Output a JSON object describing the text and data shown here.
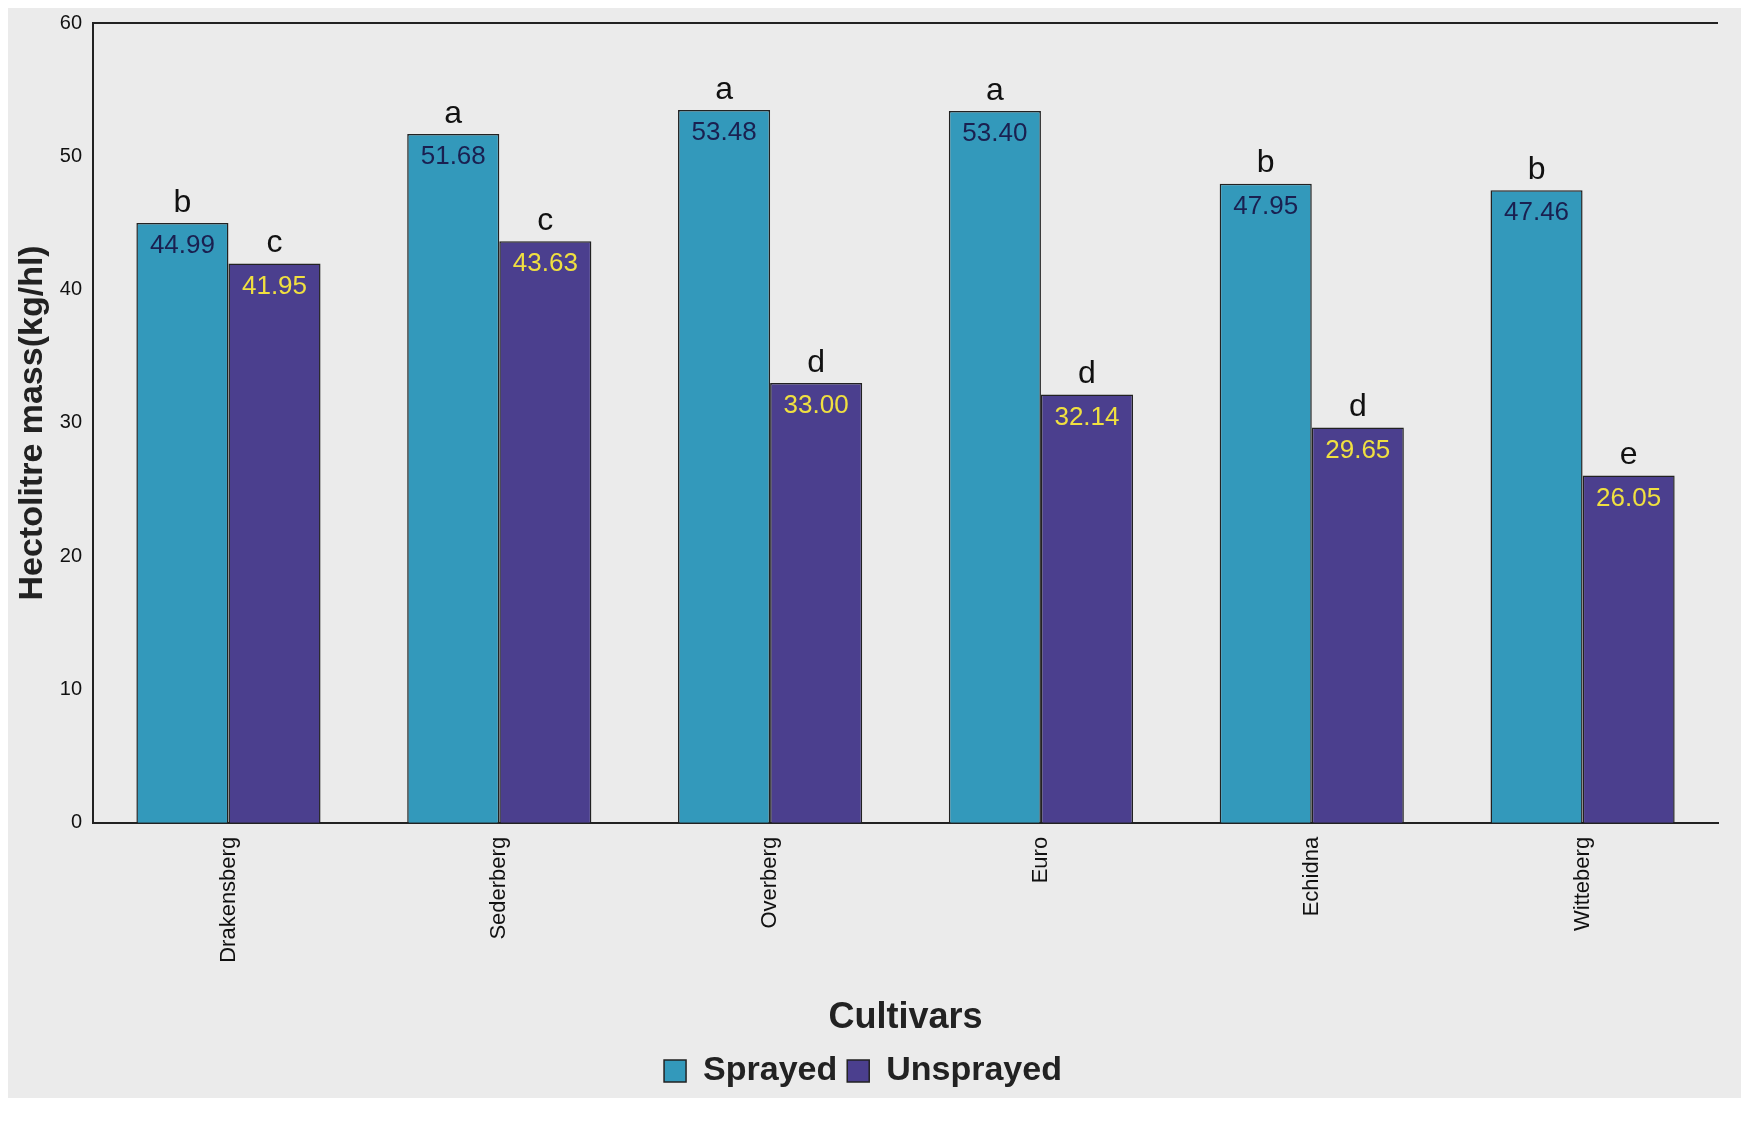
{
  "chart_data": {
    "type": "bar",
    "xlabel": "Cultivars",
    "ylabel": "Hectolitre mass(kg/hl)",
    "categories": [
      "Drakensberg",
      "Sederberg",
      "Overberg",
      "Euro",
      "Echidna",
      "Witteberg"
    ],
    "series": [
      {
        "name": "Sprayed",
        "color": "#3399bb",
        "values": [
          44.99,
          51.68,
          53.48,
          53.4,
          47.95,
          47.46
        ],
        "value_labels": [
          "44.99",
          "51.68",
          "53.48",
          "53.40",
          "47.95",
          "47.46"
        ]
      },
      {
        "name": "Unsprayed",
        "color": "#4b3f8e",
        "values": [
          41.95,
          43.63,
          33.0,
          32.14,
          29.65,
          26.05
        ],
        "value_labels": [
          "41.95",
          "43.63",
          "33.00",
          "32.14",
          "29.65",
          "26.05"
        ]
      }
    ],
    "ylim": [
      0,
      60
    ],
    "yticks": [
      0,
      10,
      20,
      30,
      40,
      50,
      60
    ],
    "grid": false,
    "legend": "bottom",
    "annotations": [
      {
        "text": "b",
        "x": "Drakensberg",
        "y": 44.99
      },
      {
        "text": "c",
        "x": "Drakensberg",
        "y": 41.95
      },
      {
        "text": "a",
        "x": "Sederberg",
        "y": 51.68
      },
      {
        "text": "c",
        "x": "Sederberg",
        "y": 43.63
      },
      {
        "text": "a",
        "x": "Overberg",
        "y": 53.48
      },
      {
        "text": "d",
        "x": "Overberg",
        "y": 33.0
      },
      {
        "text": "a",
        "x": "Euro",
        "y": 53.4
      },
      {
        "text": "d",
        "x": "Euro",
        "y": 32.14
      },
      {
        "text": "b",
        "x": "Echidna",
        "y": 47.95
      },
      {
        "text": "d",
        "x": "Echidna",
        "y": 29.65
      },
      {
        "text": "b",
        "x": "Witteberg",
        "y": 47.46
      },
      {
        "text": "e",
        "x": "Witteberg",
        "y": 26.05
      }
    ]
  }
}
